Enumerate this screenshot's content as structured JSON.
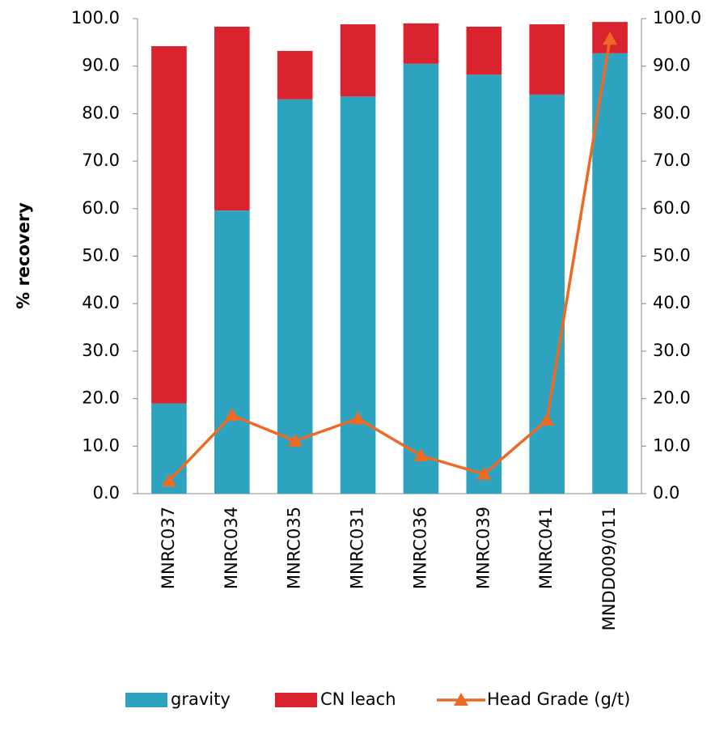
{
  "chart_data": {
    "type": "bar",
    "stacked": true,
    "y_label": "% recovery",
    "categories": [
      "MNRC037",
      "MNRC034",
      "MNRC035",
      "MNRC031",
      "MNRC036",
      "MNRC039",
      "MNRC041",
      "MNDD009/011"
    ],
    "series": [
      {
        "name": "gravity",
        "color": "#2ea3c0",
        "values": [
          19.0,
          59.6,
          83.0,
          83.6,
          90.5,
          88.2,
          84.0,
          92.7
        ]
      },
      {
        "name": "CN leach",
        "color": "#d9232e",
        "values": [
          75.2,
          38.7,
          10.2,
          15.2,
          8.5,
          10.1,
          14.8,
          6.6
        ]
      },
      {
        "name": "Head Grade (g/t)",
        "color": "#ec6a24",
        "type": "line",
        "axis": "y2",
        "values": [
          2.7,
          16.5,
          11.1,
          15.8,
          8.0,
          4.1,
          15.5,
          95.7
        ]
      }
    ],
    "ylim": [
      0,
      100
    ],
    "yticks": [
      {
        "value": 0,
        "label": "0.0"
      },
      {
        "value": 10,
        "label": "10.0"
      },
      {
        "value": 20,
        "label": "20.0"
      },
      {
        "value": 30,
        "label": "30.0"
      },
      {
        "value": 40,
        "label": "40.0"
      },
      {
        "value": 50,
        "label": "50.0"
      },
      {
        "value": 60,
        "label": "60.0"
      },
      {
        "value": 70,
        "label": "70.0"
      },
      {
        "value": 80,
        "label": "80.0"
      },
      {
        "value": 90,
        "label": "90.0"
      },
      {
        "value": 100,
        "label": "100.0"
      }
    ],
    "y2lim": [
      0,
      100
    ],
    "y2ticks": [
      {
        "value": 0,
        "label": "0.0"
      },
      {
        "value": 10,
        "label": "10.0"
      },
      {
        "value": 20,
        "label": "20.0"
      },
      {
        "value": 30,
        "label": "30.0"
      },
      {
        "value": 40,
        "label": "40.0"
      },
      {
        "value": 50,
        "label": "50.0"
      },
      {
        "value": 60,
        "label": "60.0"
      },
      {
        "value": 70,
        "label": "70.0"
      },
      {
        "value": 80,
        "label": "80.0"
      },
      {
        "value": 90,
        "label": "90.0"
      },
      {
        "value": 100,
        "label": "100.0"
      }
    ],
    "legend": "bottom"
  }
}
